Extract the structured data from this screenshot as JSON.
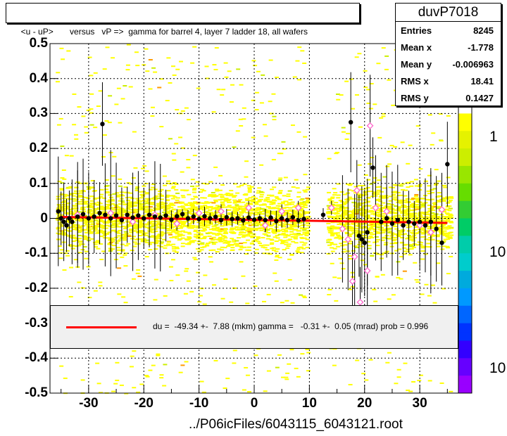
{
  "title": "<u - uP>       versus   vP =>  gamma for barrel 4, layer 7 ladder 18, all wafers",
  "stats": {
    "name": "duvP7018",
    "rows": [
      {
        "label": "Entries",
        "value": "8245"
      },
      {
        "label": "Mean x",
        "value": "-1.778"
      },
      {
        "label": "Mean y",
        "value": "-0.006963"
      },
      {
        "label": "RMS x",
        "value": "18.41"
      },
      {
        "label": "RMS y",
        "value": "0.1427"
      }
    ]
  },
  "fit_legend": {
    "text": "du =  -49.34 +-  7.88 (mkm) gamma =   -0.31 +-  0.05 (mrad) prob = 0.996",
    "line_color": "#ff0000"
  },
  "footer": "../P06icFiles/6043115_6043121.root",
  "colors": {
    "fit_line": "#ff0000",
    "profile_points": "#000000",
    "profile_open": "#ff66cc",
    "hist_low": "#ffff00",
    "hist_mid": "#ccee00",
    "hist_high": "#ff9900",
    "legend_bg": "#f0f0f0"
  },
  "chart_data": {
    "type": "heatmap",
    "title": "<u - uP>       versus   vP =>  gamma for barrel 4, layer 7 ladder 18, all wafers",
    "xlabel": "",
    "ylabel": "",
    "xlim": [
      -37,
      37
    ],
    "ylim": [
      -0.5,
      0.5
    ],
    "x_ticks": [
      -30,
      -20,
      -10,
      0,
      10,
      20,
      30
    ],
    "y_ticks": [
      0.5,
      0.4,
      0.3,
      0.2,
      0.1,
      0,
      -0.1,
      -0.2,
      -0.3,
      -0.4,
      -0.5
    ],
    "y_tick_labels": [
      "0.5",
      "0.4",
      "0.3",
      "0.2",
      "0.1",
      "0",
      "-0.1",
      "-0.2",
      "-0.3",
      "-0.4",
      "-0.5"
    ],
    "z_tick_labels": [
      "1",
      "10",
      "10"
    ],
    "grid": true,
    "fit_line": {
      "x": [
        -35,
        35
      ],
      "y": [
        0.004,
        -0.013
      ]
    },
    "profile_filled": [
      {
        "x": -35.5,
        "y": 0.02
      },
      {
        "x": -35,
        "y": 0.0
      },
      {
        "x": -34.5,
        "y": -0.01
      },
      {
        "x": -34,
        "y": -0.02
      },
      {
        "x": -33.5,
        "y": 0.0
      },
      {
        "x": -33,
        "y": -0.01
      },
      {
        "x": -32,
        "y": 0.005
      },
      {
        "x": -31,
        "y": 0.012
      },
      {
        "x": -30,
        "y": 0.0
      },
      {
        "x": -29,
        "y": 0.005
      },
      {
        "x": -28,
        "y": 0.015
      },
      {
        "x": -27.5,
        "y": 0.27
      },
      {
        "x": -27,
        "y": 0.01
      },
      {
        "x": -26,
        "y": 0.0
      },
      {
        "x": -25,
        "y": 0.008
      },
      {
        "x": -24,
        "y": -0.005
      },
      {
        "x": -23,
        "y": 0.01
      },
      {
        "x": -22,
        "y": 0.002
      },
      {
        "x": -21,
        "y": 0.008
      },
      {
        "x": -20,
        "y": 0.0
      },
      {
        "x": -19,
        "y": 0.01
      },
      {
        "x": -18,
        "y": 0.005
      },
      {
        "x": -17,
        "y": 0.002
      },
      {
        "x": -16,
        "y": 0.008
      },
      {
        "x": -15,
        "y": -0.004
      },
      {
        "x": -14,
        "y": 0.006
      },
      {
        "x": -13,
        "y": 0.012
      },
      {
        "x": -12,
        "y": 0.0
      },
      {
        "x": -11,
        "y": 0.005
      },
      {
        "x": -10,
        "y": -0.002
      },
      {
        "x": -9,
        "y": 0.006
      },
      {
        "x": -8,
        "y": 0.0
      },
      {
        "x": -7,
        "y": 0.004
      },
      {
        "x": -6,
        "y": -0.005
      },
      {
        "x": -5,
        "y": 0.003
      },
      {
        "x": -4,
        "y": -0.002
      },
      {
        "x": -3,
        "y": 0.0
      },
      {
        "x": -2,
        "y": -0.006
      },
      {
        "x": -1,
        "y": 0.002
      },
      {
        "x": 0,
        "y": -0.004
      },
      {
        "x": 1,
        "y": 0.0
      },
      {
        "x": 2,
        "y": -0.005
      },
      {
        "x": 3,
        "y": 0.002
      },
      {
        "x": 4,
        "y": -0.008
      },
      {
        "x": 5,
        "y": 0.0
      },
      {
        "x": 6,
        "y": -0.005
      },
      {
        "x": 7,
        "y": 0.003
      },
      {
        "x": 8,
        "y": -0.006
      },
      {
        "x": 9,
        "y": -0.002
      },
      {
        "x": 12.5,
        "y": 0.01
      },
      {
        "x": 17.5,
        "y": 0.275
      },
      {
        "x": 19,
        "y": -0.05
      },
      {
        "x": 19.5,
        "y": -0.06
      },
      {
        "x": 20,
        "y": -0.07
      },
      {
        "x": 20.5,
        "y": -0.04
      },
      {
        "x": 21.5,
        "y": 0.145
      },
      {
        "x": 23,
        "y": -0.01
      },
      {
        "x": 24,
        "y": 0.0
      },
      {
        "x": 25,
        "y": -0.015
      },
      {
        "x": 26,
        "y": -0.005
      },
      {
        "x": 27,
        "y": -0.02
      },
      {
        "x": 28,
        "y": -0.01
      },
      {
        "x": 29,
        "y": -0.015
      },
      {
        "x": 30,
        "y": -0.01
      },
      {
        "x": 31,
        "y": -0.02
      },
      {
        "x": 32,
        "y": -0.01
      },
      {
        "x": 33,
        "y": -0.03
      },
      {
        "x": 34,
        "y": -0.07
      },
      {
        "x": 35,
        "y": 0.155
      }
    ],
    "profile_open": [
      {
        "x": -32,
        "y": 0.01
      },
      {
        "x": -26,
        "y": 0.015
      },
      {
        "x": -22,
        "y": -0.01
      },
      {
        "x": -18,
        "y": 0.01
      },
      {
        "x": -14,
        "y": -0.015
      },
      {
        "x": -10,
        "y": 0.015
      },
      {
        "x": -6,
        "y": 0.02
      },
      {
        "x": -1,
        "y": 0.03
      },
      {
        "x": 2,
        "y": -0.02
      },
      {
        "x": 5,
        "y": 0.02
      },
      {
        "x": 8,
        "y": 0.03
      },
      {
        "x": 14,
        "y": 0.03
      },
      {
        "x": 16,
        "y": -0.03
      },
      {
        "x": 17,
        "y": -0.06
      },
      {
        "x": 17.8,
        "y": -0.18
      },
      {
        "x": 18.2,
        "y": -0.11
      },
      {
        "x": 18.6,
        "y": 0.08
      },
      {
        "x": 19.2,
        "y": -0.24
      },
      {
        "x": 20.5,
        "y": -0.15
      },
      {
        "x": 21,
        "y": 0.265
      },
      {
        "x": 22,
        "y": 0.03
      },
      {
        "x": 24,
        "y": 0.02
      },
      {
        "x": 30,
        "y": -0.02
      },
      {
        "x": 32,
        "y": -0.04
      },
      {
        "x": 34,
        "y": 0.025
      }
    ]
  }
}
